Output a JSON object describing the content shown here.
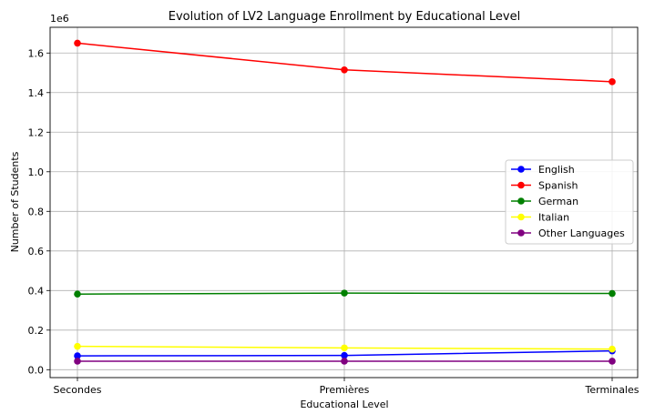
{
  "chart_data": {
    "type": "line",
    "title": "Evolution of LV2 Language Enrollment by Educational Level",
    "xlabel": "Educational Level",
    "ylabel": "Number of Students",
    "y_multiplier_label": "1e6",
    "categories": [
      "Secondes",
      "Premières",
      "Terminales"
    ],
    "ylim": [
      -40000,
      1730000
    ],
    "yticks": [
      0,
      200000,
      400000,
      600000,
      800000,
      1000000,
      1200000,
      1400000,
      1600000
    ],
    "ytick_labels": [
      "0.0",
      "0.2",
      "0.4",
      "0.6",
      "0.8",
      "1.0",
      "1.2",
      "1.4",
      "1.6"
    ],
    "grid": true,
    "legend_position": "center-right",
    "series": [
      {
        "name": "English",
        "color": "#0000ff",
        "values": [
          70000,
          72000,
          95000
        ]
      },
      {
        "name": "Spanish",
        "color": "#ff0000",
        "values": [
          1650000,
          1515000,
          1455000
        ]
      },
      {
        "name": "German",
        "color": "#008000",
        "values": [
          382000,
          387000,
          385000
        ]
      },
      {
        "name": "Italian",
        "color": "#ffff00",
        "values": [
          118000,
          110000,
          104000
        ]
      },
      {
        "name": "Other Languages",
        "color": "#800080",
        "values": [
          43000,
          43000,
          43000
        ]
      }
    ]
  }
}
